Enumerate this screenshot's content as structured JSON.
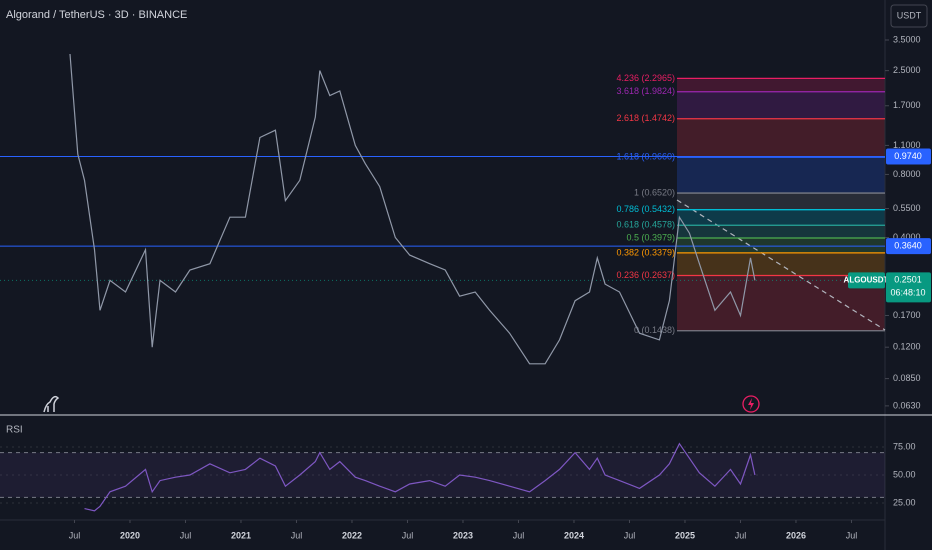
{
  "header": {
    "title": "Algorand / TetherUS · 3D · BINANCE",
    "currency": "USDT"
  },
  "chart_data": {
    "type": "line",
    "ylog": true,
    "ylim": [
      0.057,
      5.43
    ],
    "xlim": [
      2018.829,
      2026.802
    ],
    "yticks": [
      {
        "value": 3.5,
        "label": "3.5000"
      },
      {
        "value": 2.5,
        "label": "2.5000"
      },
      {
        "value": 1.7,
        "label": "1.7000"
      },
      {
        "value": 1.1,
        "label": "1.1000"
      },
      {
        "value": 0.8,
        "label": "0.8000"
      },
      {
        "value": 0.55,
        "label": "0.5500"
      },
      {
        "value": 0.4,
        "label": "0.4000"
      },
      {
        "value": 0.17,
        "label": "0.1700"
      },
      {
        "value": 0.12,
        "label": "0.1200"
      },
      {
        "value": 0.085,
        "label": "0.0850"
      },
      {
        "value": 0.063,
        "label": "0.0630"
      }
    ],
    "xticks": [
      {
        "value": 2019.5,
        "label": "Jul"
      },
      2020,
      {
        "value": 2020.5,
        "label": "Jul"
      },
      2021,
      {
        "value": 2021.5,
        "label": "Jul"
      },
      2022,
      {
        "value": 2022.5,
        "label": "Jul"
      },
      2023,
      {
        "value": 2023.5,
        "label": "Jul"
      },
      2024,
      {
        "value": 2024.5,
        "label": "Jul"
      },
      2025,
      {
        "value": 2025.5,
        "label": "Jul"
      },
      2026,
      {
        "value": 2026.5,
        "label": "Jul"
      }
    ],
    "x": [
      2019.46,
      2019.53,
      2019.59,
      2019.68,
      2019.73,
      2019.82,
      2019.96,
      2020.14,
      2020.2,
      2020.27,
      2020.41,
      2020.54,
      2020.72,
      2020.9,
      2021.04,
      2021.17,
      2021.31,
      2021.4,
      2021.53,
      2021.67,
      2021.71,
      2021.8,
      2021.89,
      2022.03,
      2022.12,
      2022.25,
      2022.39,
      2022.52,
      2022.7,
      2022.84,
      2022.97,
      2023.11,
      2023.24,
      2023.42,
      2023.6,
      2023.74,
      2023.87,
      2024.01,
      2024.14,
      2024.21,
      2024.28,
      2024.41,
      2024.59,
      2024.77,
      2024.86,
      2024.95,
      2025.04,
      2025.13,
      2025.27,
      2025.41,
      2025.5,
      2025.59,
      2025.63
    ],
    "series": [
      {
        "color": "#9098a8",
        "values": [
          3.0,
          1.0,
          0.75,
          0.35,
          0.18,
          0.25,
          0.22,
          0.35,
          0.12,
          0.25,
          0.22,
          0.28,
          0.3,
          0.5,
          0.5,
          1.2,
          1.3,
          0.6,
          0.75,
          1.5,
          2.5,
          1.9,
          2.0,
          1.1,
          0.9,
          0.7,
          0.4,
          0.33,
          0.3,
          0.28,
          0.21,
          0.22,
          0.18,
          0.14,
          0.1,
          0.1,
          0.13,
          0.2,
          0.22,
          0.32,
          0.24,
          0.22,
          0.14,
          0.13,
          0.2,
          0.5,
          0.42,
          0.3,
          0.18,
          0.22,
          0.17,
          0.32,
          0.25
        ]
      }
    ],
    "levels": [
      {
        "label": "4.236 (2.2965)",
        "value": 2.2965,
        "color": "#e91e63"
      },
      {
        "label": "3.618 (1.9824)",
        "value": 1.9824,
        "color": "#9c27b0"
      },
      {
        "label": "2.618 (1.4742)",
        "value": 1.4742,
        "color": "#f23645"
      },
      {
        "label": "1.618 (0.9660)",
        "value": 0.966,
        "color": "#2962ff"
      },
      {
        "label": "1 (0.6520)",
        "value": 0.652,
        "color": "#787b86"
      },
      {
        "label": "0.786 (0.5432)",
        "value": 0.5432,
        "color": "#00bcd4"
      },
      {
        "label": "0.618 (0.4578)",
        "value": 0.4578,
        "color": "#26a69a"
      },
      {
        "label": "0.5 (0.3979)",
        "value": 0.3979,
        "color": "#4caf50"
      },
      {
        "label": "0.382 (0.3379)",
        "value": 0.3379,
        "color": "#ff9800"
      },
      {
        "label": "0.236 (0.2637)",
        "value": 0.2637,
        "color": "#f23645"
      },
      {
        "label": "0 (0.1438)",
        "value": 0.1438,
        "color": "#787b86"
      }
    ],
    "price_tags": [
      {
        "value": 0.974,
        "label": "0.9740",
        "color": "#2962ff"
      },
      {
        "value": 0.364,
        "label": "0.3640",
        "color": "#2962ff"
      }
    ],
    "current": {
      "name": "ALGOUSDT",
      "value": 0.2501,
      "label": "0.2501",
      "countdown": "06:48:10",
      "color": "#089981"
    }
  },
  "rsi": {
    "title": "RSI",
    "ylim": [
      9.8,
      103.6
    ],
    "yticks": [
      {
        "value": 75,
        "label": "75.00"
      },
      {
        "value": 50,
        "label": "50.00"
      },
      {
        "value": 25,
        "label": "25.00"
      }
    ],
    "band": [
      30,
      70
    ],
    "color": "#7e57c2",
    "values": [
      null,
      null,
      20,
      18,
      22,
      35,
      40,
      55,
      35,
      45,
      48,
      50,
      60,
      52,
      55,
      65,
      58,
      40,
      50,
      62,
      70,
      55,
      62,
      48,
      45,
      40,
      35,
      42,
      45,
      40,
      50,
      48,
      45,
      40,
      35,
      45,
      55,
      70,
      55,
      65,
      50,
      45,
      38,
      50,
      60,
      78,
      65,
      52,
      40,
      55,
      42,
      68,
      50
    ]
  }
}
